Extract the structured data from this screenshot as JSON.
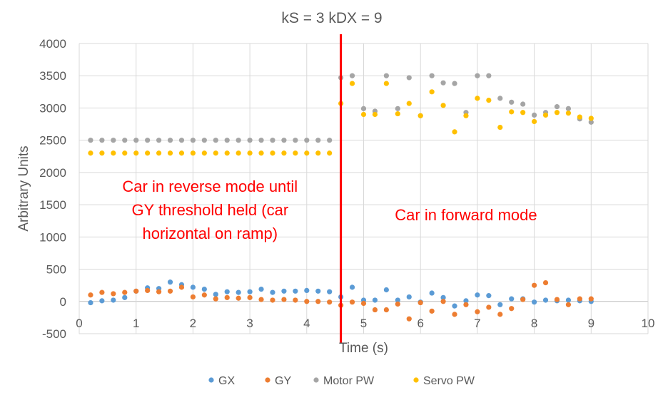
{
  "chart_data": {
    "type": "scatter",
    "title": "kS = 3 kDX = 9",
    "xlabel": "Time (s)",
    "ylabel": "Arbitrary Units",
    "xlim": [
      0,
      10
    ],
    "ylim": [
      -500,
      4000
    ],
    "x_ticks": [
      "0",
      "1",
      "2",
      "3",
      "4",
      "5",
      "6",
      "7",
      "8",
      "9",
      "10"
    ],
    "y_ticks": [
      "-500",
      "0",
      "500",
      "1000",
      "1500",
      "2000",
      "2500",
      "3000",
      "3500",
      "4000"
    ],
    "grid": "vertical and horizontal",
    "legend_position": "bottom",
    "x": [
      0.2,
      0.4,
      0.6,
      0.8,
      1.0,
      1.2,
      1.4,
      1.6,
      1.8,
      2.0,
      2.2,
      2.4,
      2.6,
      2.8,
      3.0,
      3.2,
      3.4,
      3.6,
      3.8,
      4.0,
      4.2,
      4.4,
      4.6,
      4.8,
      5.0,
      5.2,
      5.4,
      5.6,
      5.8,
      6.0,
      6.2,
      6.4,
      6.6,
      6.8,
      7.0,
      7.2,
      7.4,
      7.6,
      7.8,
      8.0,
      8.2,
      8.4,
      8.6,
      8.8,
      9.0
    ],
    "series": [
      {
        "name": "GX",
        "color": "#5b9bd5",
        "values": [
          -20,
          10,
          20,
          60,
          160,
          210,
          200,
          300,
          260,
          220,
          190,
          110,
          150,
          140,
          150,
          190,
          140,
          160,
          160,
          170,
          160,
          150,
          70,
          220,
          20,
          20,
          180,
          20,
          70,
          -10,
          130,
          60,
          -70,
          10,
          100,
          90,
          -50,
          40,
          40,
          -10,
          20,
          10,
          20,
          10,
          0
        ]
      },
      {
        "name": "GY",
        "color": "#ed7d31",
        "values": [
          100,
          140,
          120,
          140,
          160,
          170,
          150,
          160,
          220,
          70,
          100,
          40,
          60,
          50,
          60,
          30,
          20,
          30,
          20,
          0,
          0,
          -10,
          -60,
          -10,
          -30,
          -130,
          -130,
          -40,
          -270,
          -20,
          -150,
          0,
          -200,
          -50,
          -160,
          -90,
          -200,
          -110,
          30,
          250,
          290,
          30,
          -50,
          40,
          40
        ]
      },
      {
        "name": "Motor PW",
        "color": "#a5a5a5",
        "values": [
          2500,
          2500,
          2500,
          2500,
          2500,
          2500,
          2500,
          2500,
          2500,
          2500,
          2500,
          2500,
          2500,
          2500,
          2500,
          2500,
          2500,
          2500,
          2500,
          2500,
          2500,
          2500,
          3470,
          3500,
          2990,
          2950,
          3500,
          2990,
          3470,
          2880,
          3500,
          3390,
          3380,
          2930,
          3500,
          3500,
          3150,
          3090,
          3060,
          2890,
          2930,
          3020,
          2990,
          2830,
          2780
        ]
      },
      {
        "name": "Servo PW",
        "color": "#ffc000",
        "values": [
          2300,
          2300,
          2300,
          2300,
          2300,
          2300,
          2300,
          2300,
          2300,
          2300,
          2300,
          2300,
          2300,
          2300,
          2300,
          2300,
          2300,
          2300,
          2300,
          2300,
          2300,
          2300,
          3070,
          3380,
          2900,
          2900,
          3380,
          2910,
          3070,
          2880,
          3250,
          3040,
          2630,
          2880,
          3150,
          3120,
          2700,
          2940,
          2930,
          2790,
          2890,
          2930,
          2920,
          2860,
          2840
        ]
      }
    ],
    "vertical_line": {
      "x": 4.6,
      "color": "#ff0000"
    },
    "annotations": [
      {
        "lines": [
          "Car in reverse mode until",
          "GY threshold held (car",
          "horizontal on ramp)"
        ],
        "x": 2.3,
        "y": 1700,
        "color": "#ff0000"
      },
      {
        "lines": [
          "Car in forward mode"
        ],
        "x": 6.8,
        "y": 1260,
        "color": "#ff0000"
      }
    ]
  }
}
